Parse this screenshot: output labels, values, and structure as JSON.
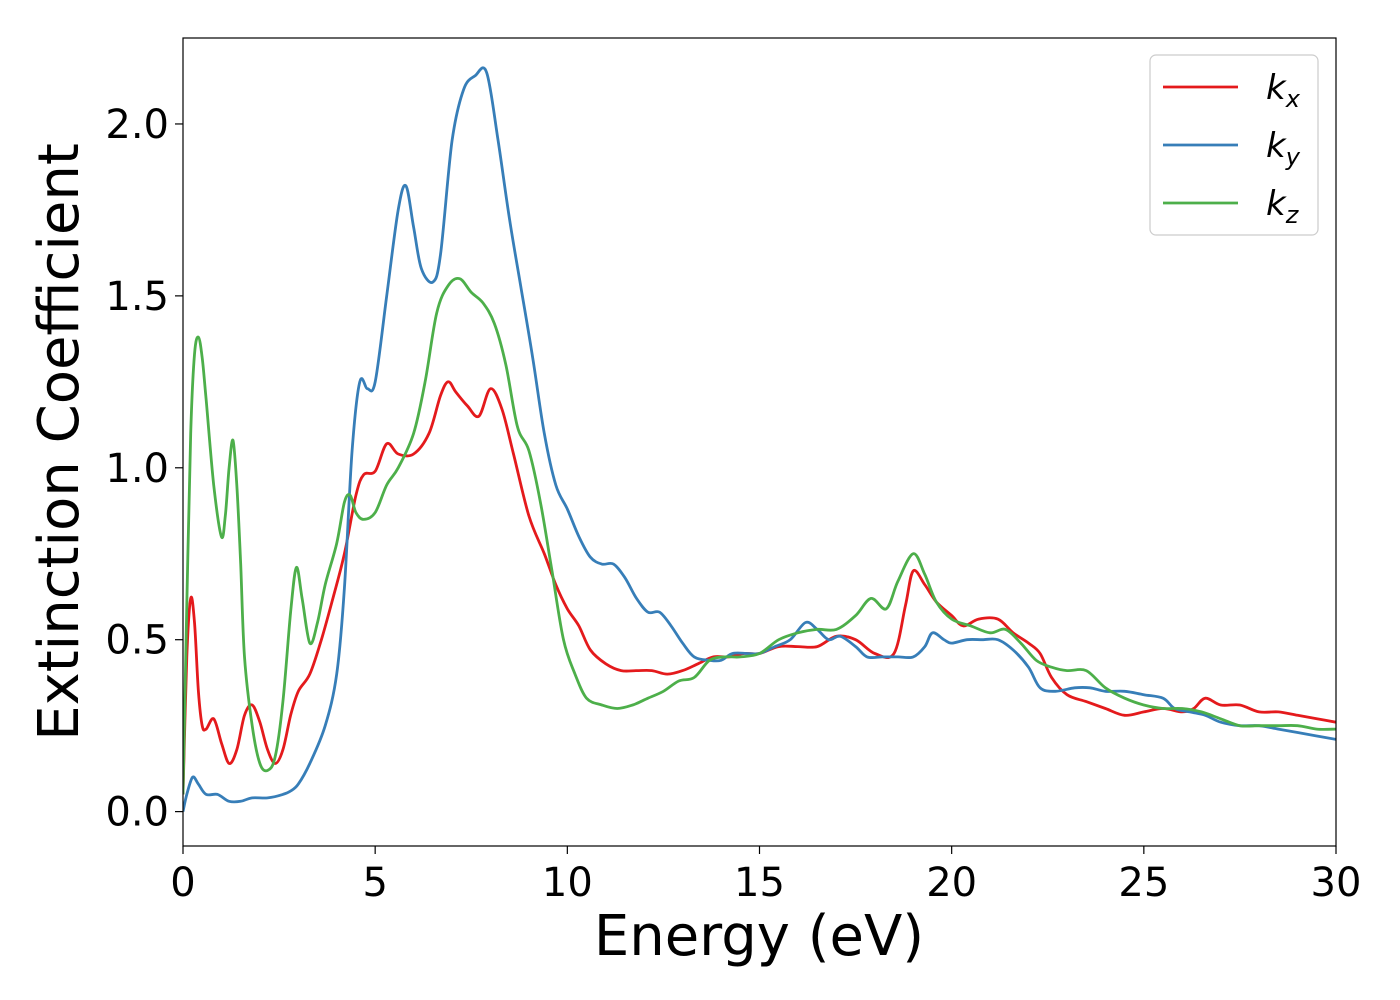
{
  "chart_data": {
    "type": "line",
    "xlabel": "Energy (eV)",
    "ylabel": "Extinction Coefficient",
    "xlim": [
      0,
      30
    ],
    "ylim": [
      -0.1,
      2.25
    ],
    "xticks": [
      0,
      5,
      10,
      15,
      20,
      25,
      30
    ],
    "xtick_labels": [
      "0",
      "5",
      "10",
      "15",
      "20",
      "25",
      "30"
    ],
    "yticks": [
      0.0,
      0.5,
      1.0,
      1.5,
      2.0
    ],
    "ytick_labels": [
      "0.0",
      "0.5",
      "1.0",
      "1.5",
      "2.0"
    ],
    "grid": false,
    "legend_position": "top-right",
    "series": [
      {
        "name": "k",
        "subscript": "x",
        "color": "#e41a1c",
        "points": [
          [
            0,
            0.05
          ],
          [
            0.1,
            0.45
          ],
          [
            0.2,
            0.62
          ],
          [
            0.3,
            0.55
          ],
          [
            0.4,
            0.35
          ],
          [
            0.5,
            0.25
          ],
          [
            0.6,
            0.24
          ],
          [
            0.8,
            0.27
          ],
          [
            1.0,
            0.2
          ],
          [
            1.2,
            0.14
          ],
          [
            1.4,
            0.18
          ],
          [
            1.6,
            0.28
          ],
          [
            1.8,
            0.31
          ],
          [
            2.0,
            0.26
          ],
          [
            2.2,
            0.18
          ],
          [
            2.4,
            0.14
          ],
          [
            2.6,
            0.18
          ],
          [
            2.8,
            0.28
          ],
          [
            3.0,
            0.35
          ],
          [
            3.3,
            0.4
          ],
          [
            3.6,
            0.5
          ],
          [
            3.9,
            0.62
          ],
          [
            4.2,
            0.75
          ],
          [
            4.5,
            0.92
          ],
          [
            4.7,
            0.98
          ],
          [
            5.0,
            0.99
          ],
          [
            5.3,
            1.07
          ],
          [
            5.6,
            1.04
          ],
          [
            6.0,
            1.04
          ],
          [
            6.4,
            1.1
          ],
          [
            6.7,
            1.21
          ],
          [
            6.9,
            1.25
          ],
          [
            7.1,
            1.22
          ],
          [
            7.4,
            1.18
          ],
          [
            7.7,
            1.15
          ],
          [
            8.0,
            1.23
          ],
          [
            8.3,
            1.17
          ],
          [
            8.6,
            1.04
          ],
          [
            9.0,
            0.86
          ],
          [
            9.4,
            0.75
          ],
          [
            9.7,
            0.66
          ],
          [
            10.0,
            0.59
          ],
          [
            10.3,
            0.54
          ],
          [
            10.6,
            0.47
          ],
          [
            11.0,
            0.43
          ],
          [
            11.4,
            0.41
          ],
          [
            11.8,
            0.41
          ],
          [
            12.2,
            0.41
          ],
          [
            12.6,
            0.4
          ],
          [
            13.0,
            0.41
          ],
          [
            13.4,
            0.43
          ],
          [
            13.8,
            0.45
          ],
          [
            14.2,
            0.45
          ],
          [
            14.6,
            0.46
          ],
          [
            15.0,
            0.46
          ],
          [
            15.5,
            0.48
          ],
          [
            16.0,
            0.48
          ],
          [
            16.5,
            0.48
          ],
          [
            17.0,
            0.51
          ],
          [
            17.5,
            0.5
          ],
          [
            18.0,
            0.46
          ],
          [
            18.5,
            0.46
          ],
          [
            18.8,
            0.6
          ],
          [
            19.0,
            0.7
          ],
          [
            19.3,
            0.66
          ],
          [
            19.6,
            0.61
          ],
          [
            20.0,
            0.57
          ],
          [
            20.3,
            0.54
          ],
          [
            20.7,
            0.56
          ],
          [
            21.2,
            0.56
          ],
          [
            21.6,
            0.52
          ],
          [
            22.0,
            0.49
          ],
          [
            22.3,
            0.46
          ],
          [
            22.6,
            0.39
          ],
          [
            23.0,
            0.34
          ],
          [
            23.5,
            0.32
          ],
          [
            24.0,
            0.3
          ],
          [
            24.5,
            0.28
          ],
          [
            25.0,
            0.29
          ],
          [
            25.5,
            0.3
          ],
          [
            26.0,
            0.29
          ],
          [
            26.3,
            0.3
          ],
          [
            26.6,
            0.33
          ],
          [
            27.0,
            0.31
          ],
          [
            27.5,
            0.31
          ],
          [
            28.0,
            0.29
          ],
          [
            28.5,
            0.29
          ],
          [
            29.0,
            0.28
          ],
          [
            29.5,
            0.27
          ],
          [
            30.0,
            0.26
          ]
        ]
      },
      {
        "name": "k",
        "subscript": "y",
        "color": "#377eb8",
        "points": [
          [
            0,
            0.0
          ],
          [
            0.1,
            0.05
          ],
          [
            0.25,
            0.1
          ],
          [
            0.4,
            0.08
          ],
          [
            0.6,
            0.05
          ],
          [
            0.9,
            0.05
          ],
          [
            1.2,
            0.03
          ],
          [
            1.5,
            0.03
          ],
          [
            1.8,
            0.04
          ],
          [
            2.2,
            0.04
          ],
          [
            2.6,
            0.05
          ],
          [
            2.8,
            0.06
          ],
          [
            3.0,
            0.08
          ],
          [
            3.3,
            0.14
          ],
          [
            3.7,
            0.25
          ],
          [
            4.0,
            0.4
          ],
          [
            4.2,
            0.65
          ],
          [
            4.4,
            1.05
          ],
          [
            4.6,
            1.25
          ],
          [
            4.8,
            1.23
          ],
          [
            5.0,
            1.25
          ],
          [
            5.3,
            1.5
          ],
          [
            5.6,
            1.75
          ],
          [
            5.8,
            1.82
          ],
          [
            6.0,
            1.7
          ],
          [
            6.2,
            1.58
          ],
          [
            6.5,
            1.54
          ],
          [
            6.7,
            1.62
          ],
          [
            7.0,
            1.95
          ],
          [
            7.3,
            2.1
          ],
          [
            7.6,
            2.14
          ],
          [
            7.9,
            2.15
          ],
          [
            8.2,
            1.95
          ],
          [
            8.5,
            1.72
          ],
          [
            8.8,
            1.52
          ],
          [
            9.1,
            1.32
          ],
          [
            9.4,
            1.1
          ],
          [
            9.7,
            0.95
          ],
          [
            10.0,
            0.88
          ],
          [
            10.3,
            0.8
          ],
          [
            10.6,
            0.74
          ],
          [
            10.9,
            0.72
          ],
          [
            11.2,
            0.72
          ],
          [
            11.5,
            0.68
          ],
          [
            11.8,
            0.62
          ],
          [
            12.1,
            0.58
          ],
          [
            12.4,
            0.58
          ],
          [
            12.7,
            0.54
          ],
          [
            13.0,
            0.49
          ],
          [
            13.3,
            0.45
          ],
          [
            13.7,
            0.44
          ],
          [
            14.0,
            0.44
          ],
          [
            14.3,
            0.46
          ],
          [
            14.7,
            0.46
          ],
          [
            15.0,
            0.46
          ],
          [
            15.4,
            0.48
          ],
          [
            15.8,
            0.5
          ],
          [
            16.2,
            0.55
          ],
          [
            16.5,
            0.53
          ],
          [
            16.8,
            0.5
          ],
          [
            17.1,
            0.51
          ],
          [
            17.5,
            0.48
          ],
          [
            17.8,
            0.45
          ],
          [
            18.2,
            0.45
          ],
          [
            18.6,
            0.45
          ],
          [
            19.0,
            0.45
          ],
          [
            19.3,
            0.48
          ],
          [
            19.5,
            0.52
          ],
          [
            19.8,
            0.5
          ],
          [
            20.0,
            0.49
          ],
          [
            20.4,
            0.5
          ],
          [
            20.8,
            0.5
          ],
          [
            21.2,
            0.5
          ],
          [
            21.6,
            0.47
          ],
          [
            22.0,
            0.42
          ],
          [
            22.3,
            0.36
          ],
          [
            22.7,
            0.35
          ],
          [
            23.2,
            0.36
          ],
          [
            23.6,
            0.36
          ],
          [
            24.0,
            0.35
          ],
          [
            24.5,
            0.35
          ],
          [
            25.0,
            0.34
          ],
          [
            25.5,
            0.33
          ],
          [
            25.8,
            0.3
          ],
          [
            26.2,
            0.29
          ],
          [
            26.6,
            0.28
          ],
          [
            27.0,
            0.26
          ],
          [
            27.5,
            0.25
          ],
          [
            28.0,
            0.25
          ],
          [
            28.5,
            0.24
          ],
          [
            29.0,
            0.23
          ],
          [
            29.5,
            0.22
          ],
          [
            30.0,
            0.21
          ]
        ]
      },
      {
        "name": "k",
        "subscript": "z",
        "color": "#4daf4a",
        "points": [
          [
            0,
            0.05
          ],
          [
            0.1,
            0.6
          ],
          [
            0.2,
            1.1
          ],
          [
            0.3,
            1.33
          ],
          [
            0.4,
            1.38
          ],
          [
            0.5,
            1.32
          ],
          [
            0.6,
            1.2
          ],
          [
            0.8,
            0.95
          ],
          [
            1.0,
            0.8
          ],
          [
            1.1,
            0.86
          ],
          [
            1.2,
            1.0
          ],
          [
            1.3,
            1.08
          ],
          [
            1.4,
            0.95
          ],
          [
            1.5,
            0.72
          ],
          [
            1.6,
            0.45
          ],
          [
            1.8,
            0.25
          ],
          [
            2.0,
            0.14
          ],
          [
            2.2,
            0.12
          ],
          [
            2.4,
            0.16
          ],
          [
            2.6,
            0.32
          ],
          [
            2.8,
            0.58
          ],
          [
            2.95,
            0.71
          ],
          [
            3.1,
            0.62
          ],
          [
            3.3,
            0.49
          ],
          [
            3.5,
            0.55
          ],
          [
            3.7,
            0.66
          ],
          [
            4.0,
            0.78
          ],
          [
            4.2,
            0.9
          ],
          [
            4.35,
            0.92
          ],
          [
            4.5,
            0.87
          ],
          [
            4.7,
            0.85
          ],
          [
            5.0,
            0.87
          ],
          [
            5.3,
            0.95
          ],
          [
            5.6,
            1.0
          ],
          [
            6.0,
            1.1
          ],
          [
            6.3,
            1.25
          ],
          [
            6.6,
            1.45
          ],
          [
            6.9,
            1.53
          ],
          [
            7.2,
            1.55
          ],
          [
            7.5,
            1.51
          ],
          [
            7.8,
            1.48
          ],
          [
            8.1,
            1.42
          ],
          [
            8.4,
            1.3
          ],
          [
            8.7,
            1.12
          ],
          [
            9.0,
            1.05
          ],
          [
            9.3,
            0.9
          ],
          [
            9.6,
            0.7
          ],
          [
            9.9,
            0.5
          ],
          [
            10.2,
            0.4
          ],
          [
            10.5,
            0.33
          ],
          [
            10.9,
            0.31
          ],
          [
            11.3,
            0.3
          ],
          [
            11.7,
            0.31
          ],
          [
            12.1,
            0.33
          ],
          [
            12.5,
            0.35
          ],
          [
            12.9,
            0.38
          ],
          [
            13.3,
            0.39
          ],
          [
            13.7,
            0.44
          ],
          [
            14.1,
            0.45
          ],
          [
            14.5,
            0.45
          ],
          [
            15.0,
            0.46
          ],
          [
            15.5,
            0.5
          ],
          [
            16.0,
            0.52
          ],
          [
            16.5,
            0.53
          ],
          [
            17.0,
            0.53
          ],
          [
            17.5,
            0.57
          ],
          [
            17.9,
            0.62
          ],
          [
            18.3,
            0.59
          ],
          [
            18.6,
            0.67
          ],
          [
            19.0,
            0.75
          ],
          [
            19.3,
            0.69
          ],
          [
            19.6,
            0.61
          ],
          [
            20.0,
            0.56
          ],
          [
            20.5,
            0.54
          ],
          [
            21.0,
            0.52
          ],
          [
            21.4,
            0.53
          ],
          [
            21.8,
            0.49
          ],
          [
            22.2,
            0.44
          ],
          [
            22.6,
            0.42
          ],
          [
            23.0,
            0.41
          ],
          [
            23.5,
            0.41
          ],
          [
            24.0,
            0.36
          ],
          [
            24.5,
            0.33
          ],
          [
            25.0,
            0.31
          ],
          [
            25.5,
            0.3
          ],
          [
            26.0,
            0.3
          ],
          [
            26.5,
            0.29
          ],
          [
            27.0,
            0.27
          ],
          [
            27.5,
            0.25
          ],
          [
            28.0,
            0.25
          ],
          [
            28.5,
            0.25
          ],
          [
            29.0,
            0.25
          ],
          [
            29.5,
            0.24
          ],
          [
            30.0,
            0.24
          ]
        ]
      }
    ]
  }
}
